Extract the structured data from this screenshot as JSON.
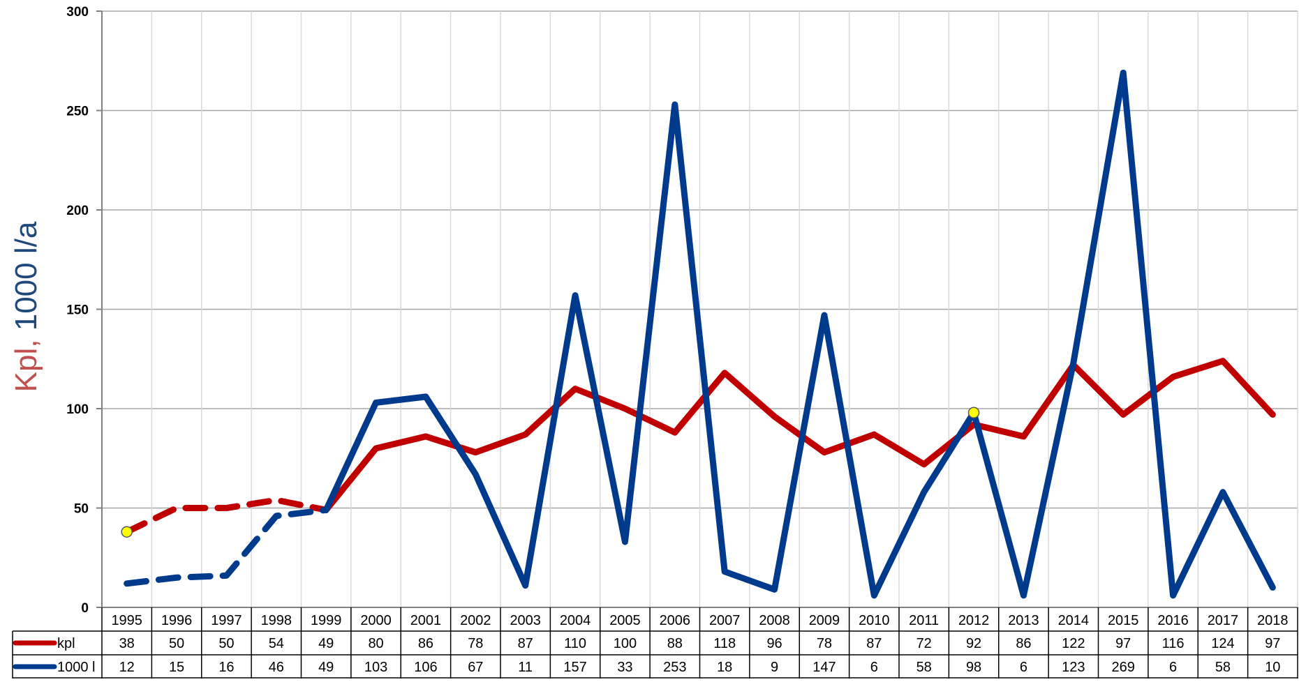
{
  "chart_data": {
    "type": "line",
    "categories": [
      "1995",
      "1996",
      "1997",
      "1998",
      "1999",
      "2000",
      "2001",
      "2002",
      "2003",
      "2004",
      "2005",
      "2006",
      "2007",
      "2008",
      "2009",
      "2010",
      "2011",
      "2012",
      "2013",
      "2014",
      "2015",
      "2016",
      "2017",
      "2018"
    ],
    "ylabel_part1": "Kpl",
    "ylabel_sep": ", ",
    "ylabel_part2": "1000 l/a",
    "ylim": [
      0,
      300
    ],
    "yticks": [
      "0",
      "50",
      "100",
      "150",
      "200",
      "250",
      "300"
    ],
    "grid": true,
    "legend": "data-table-left",
    "series": [
      {
        "name": "kpl",
        "color": "#c00000",
        "dashed_until_index": 4,
        "values": [
          38,
          50,
          50,
          54,
          49,
          80,
          86,
          78,
          87,
          110,
          100,
          88,
          118,
          96,
          78,
          87,
          72,
          92,
          86,
          122,
          97,
          116,
          124,
          97
        ]
      },
      {
        "name": "1000 l",
        "color": "#003a8c",
        "dashed_until_index": 4,
        "values": [
          12,
          15,
          16,
          46,
          49,
          103,
          106,
          67,
          11,
          157,
          33,
          253,
          18,
          9,
          147,
          6,
          58,
          98,
          6,
          123,
          269,
          6,
          58,
          10
        ]
      }
    ],
    "markers": [
      {
        "series": 0,
        "index": 0,
        "color": "#ffff00"
      },
      {
        "series": 1,
        "index": 17,
        "color": "#ffff00"
      }
    ]
  }
}
